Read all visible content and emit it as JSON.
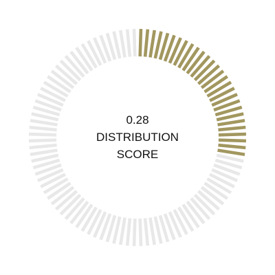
{
  "gauge": {
    "value": 0.28,
    "value_label": "0.28",
    "label_line1": "DISTRIBUTION",
    "label_line2": "SCORE",
    "tick_count": 100,
    "filled_color": "#a2975f",
    "empty_color": "#e8e8e8"
  }
}
